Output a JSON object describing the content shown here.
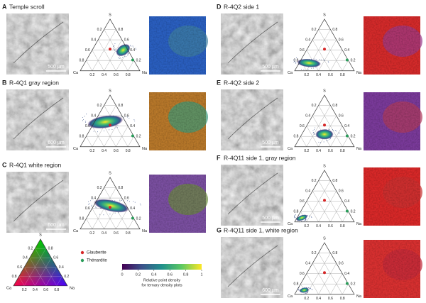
{
  "panels": [
    {
      "letter": "A",
      "title": "Temple scroll",
      "scale_bar": "500 µm"
    },
    {
      "letter": "B",
      "title": "R-4Q1 gray region",
      "scale_bar": "600 µm"
    },
    {
      "letter": "C",
      "title": "R-4Q1 white region",
      "scale_bar": "600 µm"
    },
    {
      "letter": "D",
      "title": "R-4Q2 side 1",
      "scale_bar": "500 µm"
    },
    {
      "letter": "E",
      "title": "R-4Q2 side 2",
      "scale_bar": "500 µm"
    },
    {
      "letter": "F",
      "title": "R-4Q11 side 1, gray region",
      "scale_bar": "500 µm"
    },
    {
      "letter": "G",
      "title": "R-4Q11 side 1, white region",
      "scale_bar": "600 µm"
    }
  ],
  "ternary": {
    "top": "S",
    "left": "Ca",
    "right": "Na",
    "ticks": [
      0.2,
      0.4,
      0.6,
      0.8
    ]
  },
  "legend": {
    "items": [
      {
        "label": "Glauberite",
        "color": "#d62728"
      },
      {
        "label": "Thénardite",
        "color": "#2a9d5a"
      }
    ]
  },
  "colorbar": {
    "ticks": [
      0,
      0.2,
      0.4,
      0.6,
      0.8,
      1
    ],
    "caption": [
      "Relative point density",
      "for ternary density plots"
    ]
  }
}
